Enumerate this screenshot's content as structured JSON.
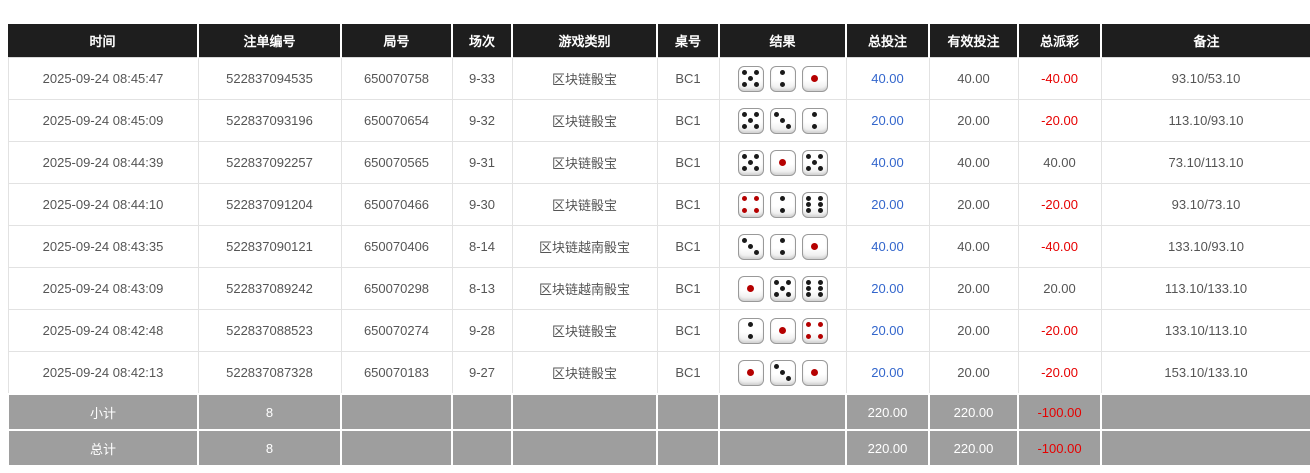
{
  "colors": {
    "header_bg": "#1e1e1e",
    "header_text": "#ffffff",
    "body_text": "#555555",
    "bet_link_blue": "#3366cc",
    "negative_red": "#e60000",
    "summary_bg": "#9e9e9e",
    "die_pip_black": "#1a1a1a",
    "die_pip_red": "#b50000"
  },
  "table": {
    "columns": [
      {
        "key": "time",
        "label": "时间"
      },
      {
        "key": "bet_id",
        "label": "注单编号"
      },
      {
        "key": "round_id",
        "label": "局号"
      },
      {
        "key": "session",
        "label": "场次"
      },
      {
        "key": "game_type",
        "label": "游戏类别"
      },
      {
        "key": "table_id",
        "label": "桌号"
      },
      {
        "key": "result",
        "label": "结果"
      },
      {
        "key": "total_bet",
        "label": "总投注"
      },
      {
        "key": "valid_bet",
        "label": "有效投注"
      },
      {
        "key": "payout",
        "label": "总派彩"
      },
      {
        "key": "remark",
        "label": "备注"
      }
    ],
    "rows": [
      {
        "time": "2025-09-24 08:45:47",
        "bet_id": "522837094535",
        "round_id": "650070758",
        "session": "9-33",
        "game_type": "区块链骰宝",
        "table_id": "BC1",
        "dice": [
          5,
          2,
          1
        ],
        "total_bet": "40.00",
        "valid_bet": "40.00",
        "payout": "-40.00",
        "remark": "93.10/53.10"
      },
      {
        "time": "2025-09-24 08:45:09",
        "bet_id": "522837093196",
        "round_id": "650070654",
        "session": "9-32",
        "game_type": "区块链骰宝",
        "table_id": "BC1",
        "dice": [
          5,
          3,
          2
        ],
        "total_bet": "20.00",
        "valid_bet": "20.00",
        "payout": "-20.00",
        "remark": "113.10/93.10"
      },
      {
        "time": "2025-09-24 08:44:39",
        "bet_id": "522837092257",
        "round_id": "650070565",
        "session": "9-31",
        "game_type": "区块链骰宝",
        "table_id": "BC1",
        "dice": [
          5,
          1,
          5
        ],
        "total_bet": "40.00",
        "valid_bet": "40.00",
        "payout": "40.00",
        "remark": "73.10/113.10"
      },
      {
        "time": "2025-09-24 08:44:10",
        "bet_id": "522837091204",
        "round_id": "650070466",
        "session": "9-30",
        "game_type": "区块链骰宝",
        "table_id": "BC1",
        "dice": [
          4,
          2,
          6
        ],
        "total_bet": "20.00",
        "valid_bet": "20.00",
        "payout": "-20.00",
        "remark": "93.10/73.10"
      },
      {
        "time": "2025-09-24 08:43:35",
        "bet_id": "522837090121",
        "round_id": "650070406",
        "session": "8-14",
        "game_type": "区块链越南骰宝",
        "table_id": "BC1",
        "dice": [
          3,
          2,
          1
        ],
        "total_bet": "40.00",
        "valid_bet": "40.00",
        "payout": "-40.00",
        "remark": "133.10/93.10"
      },
      {
        "time": "2025-09-24 08:43:09",
        "bet_id": "522837089242",
        "round_id": "650070298",
        "session": "8-13",
        "game_type": "区块链越南骰宝",
        "table_id": "BC1",
        "dice": [
          1,
          5,
          6
        ],
        "total_bet": "20.00",
        "valid_bet": "20.00",
        "payout": "20.00",
        "remark": "113.10/133.10"
      },
      {
        "time": "2025-09-24 08:42:48",
        "bet_id": "522837088523",
        "round_id": "650070274",
        "session": "9-28",
        "game_type": "区块链骰宝",
        "table_id": "BC1",
        "dice": [
          2,
          1,
          4
        ],
        "total_bet": "20.00",
        "valid_bet": "20.00",
        "payout": "-20.00",
        "remark": "133.10/113.10"
      },
      {
        "time": "2025-09-24 08:42:13",
        "bet_id": "522837087328",
        "round_id": "650070183",
        "session": "9-27",
        "game_type": "区块链骰宝",
        "table_id": "BC1",
        "dice": [
          1,
          3,
          1
        ],
        "total_bet": "20.00",
        "valid_bet": "20.00",
        "payout": "-20.00",
        "remark": "153.10/133.10"
      }
    ],
    "summary_rows": [
      {
        "label": "小计",
        "count": "8",
        "total_bet": "220.00",
        "valid_bet": "220.00",
        "payout": "-100.00"
      },
      {
        "label": "总计",
        "count": "8",
        "total_bet": "220.00",
        "valid_bet": "220.00",
        "payout": "-100.00"
      }
    ]
  }
}
